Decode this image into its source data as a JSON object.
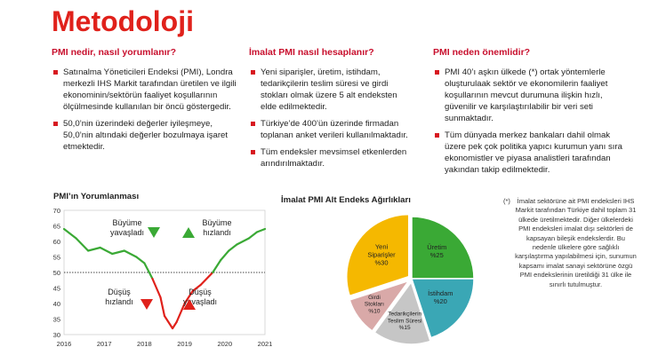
{
  "page": {
    "title": "Metodoloji"
  },
  "sections": [
    {
      "heading": "PMI nedir, nasıl yorumlanır?",
      "bullets": [
        "Satınalma Yöneticileri Endeksi (PMI), Londra merkezli IHS Markit tarafından üretilen ve ilgili ekonominin/sektörün faaliyet koşullarının ölçülmesinde kullanılan bir öncü göstergedir.",
        "50,0’nin üzerindeki değerler iyileşmeye, 50,0’nin altındaki değerler bozulmaya işaret etmektedir."
      ]
    },
    {
      "heading": "İmalat PMI nasıl hesaplanır?",
      "bullets": [
        "Yeni siparişler, üretim, istihdam, tedarikçilerin teslim süresi ve girdi stokları olmak üzere 5 alt endeksten elde edilmektedir.",
        "Türkiye’de 400’ün üzerinde firmadan toplanan anket verileri kullanılmaktadır.",
        "Tüm endeksler mevsimsel etkenlerden arındırılmaktadır."
      ]
    },
    {
      "heading": "PMI neden önemlidir?",
      "bullets": [
        "PMI 40’ı aşkın ülkede (*) ortak yöntemlerle oluşturulaak sektör ve ekonomilerin faaliyet koşullarının mevcut durumuna ilişkin hızlı, güvenilir ve karşılaştırılabilir bir veri seti sunmaktadır.",
        "Tüm dünyada merkez bankaları dahil olmak üzere pek çok politika yapıcı kurumun yanı sıra ekonomistler ve piyasa analistleri tarafından yakından takip edilmektedir."
      ]
    }
  ],
  "colors": {
    "red": "#e0211b",
    "green": "#3aa935",
    "yellow": "#f5b800",
    "teal": "#3aa7b5",
    "pink": "#d9a9a8",
    "gray": "#c6c6c6"
  },
  "chart_data": [
    {
      "type": "line",
      "title": "PMI’ın Yorumlanması",
      "x_ticks": [
        "2016",
        "2017",
        "2018",
        "2019",
        "2020",
        "2021"
      ],
      "y_ticks": [
        30,
        35,
        40,
        45,
        50,
        55,
        60,
        65,
        70
      ],
      "ylim": [
        30,
        70
      ],
      "xlim": [
        2016,
        2021
      ],
      "threshold": 50,
      "x": [
        2016.0,
        2016.3,
        2016.6,
        2016.9,
        2017.2,
        2017.5,
        2017.8,
        2018.0,
        2018.2,
        2018.4,
        2018.5,
        2018.7,
        2018.8,
        2019.0,
        2019.2,
        2019.4,
        2019.7,
        2019.9,
        2020.1,
        2020.3,
        2020.6,
        2020.8,
        2021.0
      ],
      "y": [
        64,
        61,
        57,
        58,
        56,
        57,
        55,
        53,
        48,
        42,
        36,
        32,
        34,
        40,
        44,
        46,
        50,
        54,
        57,
        59,
        61,
        63,
        64
      ],
      "annotations": [
        {
          "label": [
            "Büyüme",
            "yavaşladı"
          ],
          "arrow": "down",
          "color": "green"
        },
        {
          "label": [
            "Büyüme",
            "hızlandı"
          ],
          "arrow": "up",
          "color": "green"
        },
        {
          "label": [
            "Düşüş",
            "hızlandı"
          ],
          "arrow": "down",
          "color": "red"
        },
        {
          "label": [
            "Düşüş",
            "yavaşladı"
          ],
          "arrow": "up",
          "color": "red"
        }
      ]
    },
    {
      "type": "pie",
      "title": "İmalat PMI Alt Endeks Ağırlıkları",
      "slices": [
        {
          "label": "Üretim",
          "value": 25,
          "text": "%25",
          "color": "#3aa935"
        },
        {
          "label": "İstihdam",
          "value": 20,
          "text": "%20",
          "color": "#3aa7b5"
        },
        {
          "label": "Tedarikçilerin Teslim Süresi",
          "value": 15,
          "text": "%15",
          "color": "#c6c6c6"
        },
        {
          "label": "Girdi Stokları",
          "value": 10,
          "text": "%10",
          "color": "#d9a9a8"
        },
        {
          "label": "Yeni Siparişler",
          "value": 30,
          "text": "%30",
          "color": "#f5b800"
        }
      ]
    }
  ],
  "footnote": {
    "marker": "(*)",
    "text": "İmalat sektörüne ait PMI endeksleri IHS Markit tarafından Türkiye dahil toplam 31 ülkede üretilmektedir. Diğer ülkelerdeki PMI endeksleri imalat dışı sektörleri de kapsayan bileşik endekslerdir. Bu nedenle ülkelere göre sağlıklı karşılaştırma yapılabilmesi için, sunumun kapsamı imalat sanayi sektörüne özgü PMI endekslerinin üretildiği 31 ülke ile sınırlı tutulmuştur."
  }
}
